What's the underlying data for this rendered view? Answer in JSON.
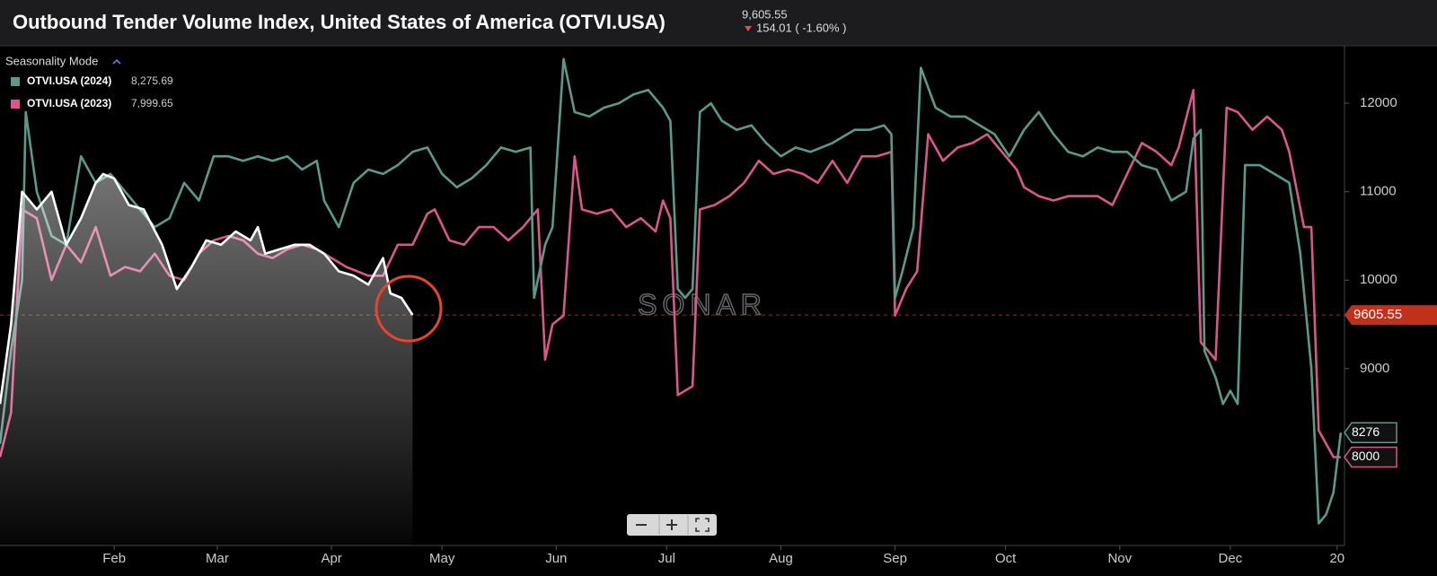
{
  "chart_data": {
    "type": "line",
    "title": "Outbound Tender Volume Index, United States of America (OTVI.USA)",
    "price": "9,605.55",
    "change": "154.01 ( -1.60% )",
    "legend_title": "Seasonality Mode",
    "watermark": "SONAR",
    "xlim": [
      0,
      365
    ],
    "xticks": [
      {
        "value": 31,
        "label": "Feb"
      },
      {
        "value": 59,
        "label": "Mar"
      },
      {
        "value": 90,
        "label": "Apr"
      },
      {
        "value": 120,
        "label": "May"
      },
      {
        "value": 151,
        "label": "Jun"
      },
      {
        "value": 181,
        "label": "Jul"
      },
      {
        "value": 212,
        "label": "Aug"
      },
      {
        "value": 243,
        "label": "Sep"
      },
      {
        "value": 273,
        "label": "Oct"
      },
      {
        "value": 304,
        "label": "Nov"
      },
      {
        "value": 334,
        "label": "Dec"
      },
      {
        "value": 363,
        "label": "20"
      }
    ],
    "ylim": [
      7000,
      12650
    ],
    "yticks": [
      9000,
      10000,
      11000,
      12000
    ],
    "current": {
      "value": 9605.55,
      "label": "9605.55"
    },
    "series": [
      {
        "name": "OTVI.USA (2024)",
        "legend_value": "8,275.69",
        "end_label": "8276",
        "color": "#5a9a8a",
        "x": [
          0,
          3,
          6,
          7,
          10,
          14,
          18,
          22,
          26,
          30,
          34,
          38,
          42,
          46,
          50,
          54,
          58,
          62,
          66,
          70,
          74,
          78,
          82,
          86,
          88,
          92,
          96,
          100,
          104,
          108,
          112,
          116,
          120,
          124,
          128,
          132,
          136,
          140,
          144,
          145,
          148,
          150,
          153,
          156,
          160,
          164,
          168,
          172,
          176,
          180,
          182,
          184,
          186,
          188,
          190,
          193,
          196,
          200,
          204,
          208,
          212,
          216,
          220,
          226,
          232,
          236,
          240,
          242,
          243,
          245,
          248,
          250,
          254,
          258,
          262,
          266,
          270,
          274,
          278,
          282,
          286,
          290,
          294,
          298,
          302,
          306,
          310,
          314,
          318,
          322,
          324,
          326,
          327,
          330,
          332,
          334,
          336,
          338,
          342,
          346,
          350,
          353,
          356,
          358,
          360,
          362,
          364
        ],
        "values": [
          8150,
          9200,
          10000,
          11900,
          11000,
          10500,
          10400,
          11400,
          11100,
          11200,
          11000,
          10800,
          10600,
          10700,
          11100,
          10900,
          11400,
          11400,
          11350,
          11400,
          11350,
          11400,
          11250,
          11350,
          10900,
          10600,
          11100,
          11250,
          11200,
          11300,
          11450,
          11500,
          11200,
          11050,
          11150,
          11300,
          11500,
          11450,
          11500,
          9800,
          10400,
          10600,
          12500,
          11900,
          11850,
          11950,
          12000,
          12100,
          12150,
          11950,
          11800,
          9900,
          9800,
          9900,
          11900,
          12000,
          11800,
          11700,
          11750,
          11550,
          11400,
          11500,
          11450,
          11550,
          11700,
          11700,
          11750,
          11650,
          9800,
          10100,
          10600,
          12400,
          11950,
          11850,
          11850,
          11750,
          11650,
          11400,
          11700,
          11900,
          11650,
          11450,
          11400,
          11500,
          11450,
          11450,
          11300,
          11250,
          10900,
          11000,
          11600,
          11700,
          9200,
          8900,
          8600,
          8750,
          8600,
          11300,
          11300,
          11200,
          11100,
          10300,
          9000,
          7250,
          7350,
          7600,
          8275.69
        ]
      },
      {
        "name": "OTVI.USA (2023)",
        "legend_value": "7,999.65",
        "end_label": "8000",
        "color": "#d9578a",
        "x": [
          0,
          3,
          6,
          10,
          14,
          18,
          22,
          26,
          30,
          34,
          38,
          42,
          46,
          50,
          54,
          58,
          62,
          66,
          70,
          74,
          78,
          82,
          86,
          90,
          94,
          100,
          104,
          108,
          112,
          116,
          118,
          122,
          126,
          130,
          134,
          138,
          142,
          146,
          148,
          150,
          153,
          156,
          158,
          162,
          166,
          170,
          174,
          178,
          180,
          182,
          184,
          188,
          190,
          194,
          198,
          202,
          206,
          210,
          214,
          218,
          222,
          226,
          230,
          234,
          238,
          242,
          243,
          246,
          249,
          252,
          256,
          260,
          264,
          268,
          272,
          276,
          278,
          282,
          286,
          290,
          294,
          298,
          302,
          306,
          310,
          314,
          318,
          320,
          324,
          326,
          330,
          333,
          336,
          340,
          344,
          348,
          350,
          354,
          356,
          358,
          362,
          364
        ],
        "values": [
          8000,
          8500,
          10800,
          10700,
          10000,
          10400,
          10200,
          10600,
          10050,
          10150,
          10100,
          10300,
          10050,
          10000,
          10300,
          10450,
          10500,
          10450,
          10300,
          10250,
          10350,
          10400,
          10350,
          10250,
          10150,
          10050,
          10050,
          10400,
          10400,
          10750,
          10800,
          10450,
          10400,
          10600,
          10600,
          10450,
          10600,
          10800,
          9100,
          9500,
          9600,
          11400,
          10800,
          10750,
          10800,
          10600,
          10700,
          10550,
          10900,
          10700,
          8700,
          8800,
          10800,
          10850,
          10950,
          11100,
          11350,
          11200,
          11250,
          11200,
          11100,
          11350,
          11100,
          11400,
          11400,
          11450,
          9600,
          9900,
          10100,
          11650,
          11350,
          11500,
          11550,
          11650,
          11450,
          11250,
          11050,
          10950,
          10900,
          10950,
          10950,
          10950,
          10850,
          11200,
          11550,
          11450,
          11300,
          11500,
          12150,
          9300,
          9100,
          11950,
          11900,
          11700,
          11850,
          11700,
          11450,
          10600,
          10600,
          8300,
          8000,
          7999.65
        ]
      },
      {
        "color": "#ffffff",
        "x": [
          0,
          3,
          6,
          10,
          14,
          18,
          22,
          26,
          28,
          31,
          35,
          39,
          44,
          48,
          52,
          56,
          60,
          64,
          68,
          70,
          72,
          76,
          80,
          84,
          88,
          92,
          96,
          100,
          104,
          106,
          109,
          112
        ],
        "values": [
          8600,
          9500,
          11000,
          10800,
          11000,
          10400,
          10700,
          11100,
          11200,
          11150,
          10850,
          10800,
          10400,
          9900,
          10150,
          10450,
          10400,
          10550,
          10450,
          10600,
          10300,
          10350,
          10400,
          10400,
          10300,
          10100,
          10050,
          9950,
          10250,
          9850,
          9800,
          9605.55
        ]
      }
    ]
  }
}
